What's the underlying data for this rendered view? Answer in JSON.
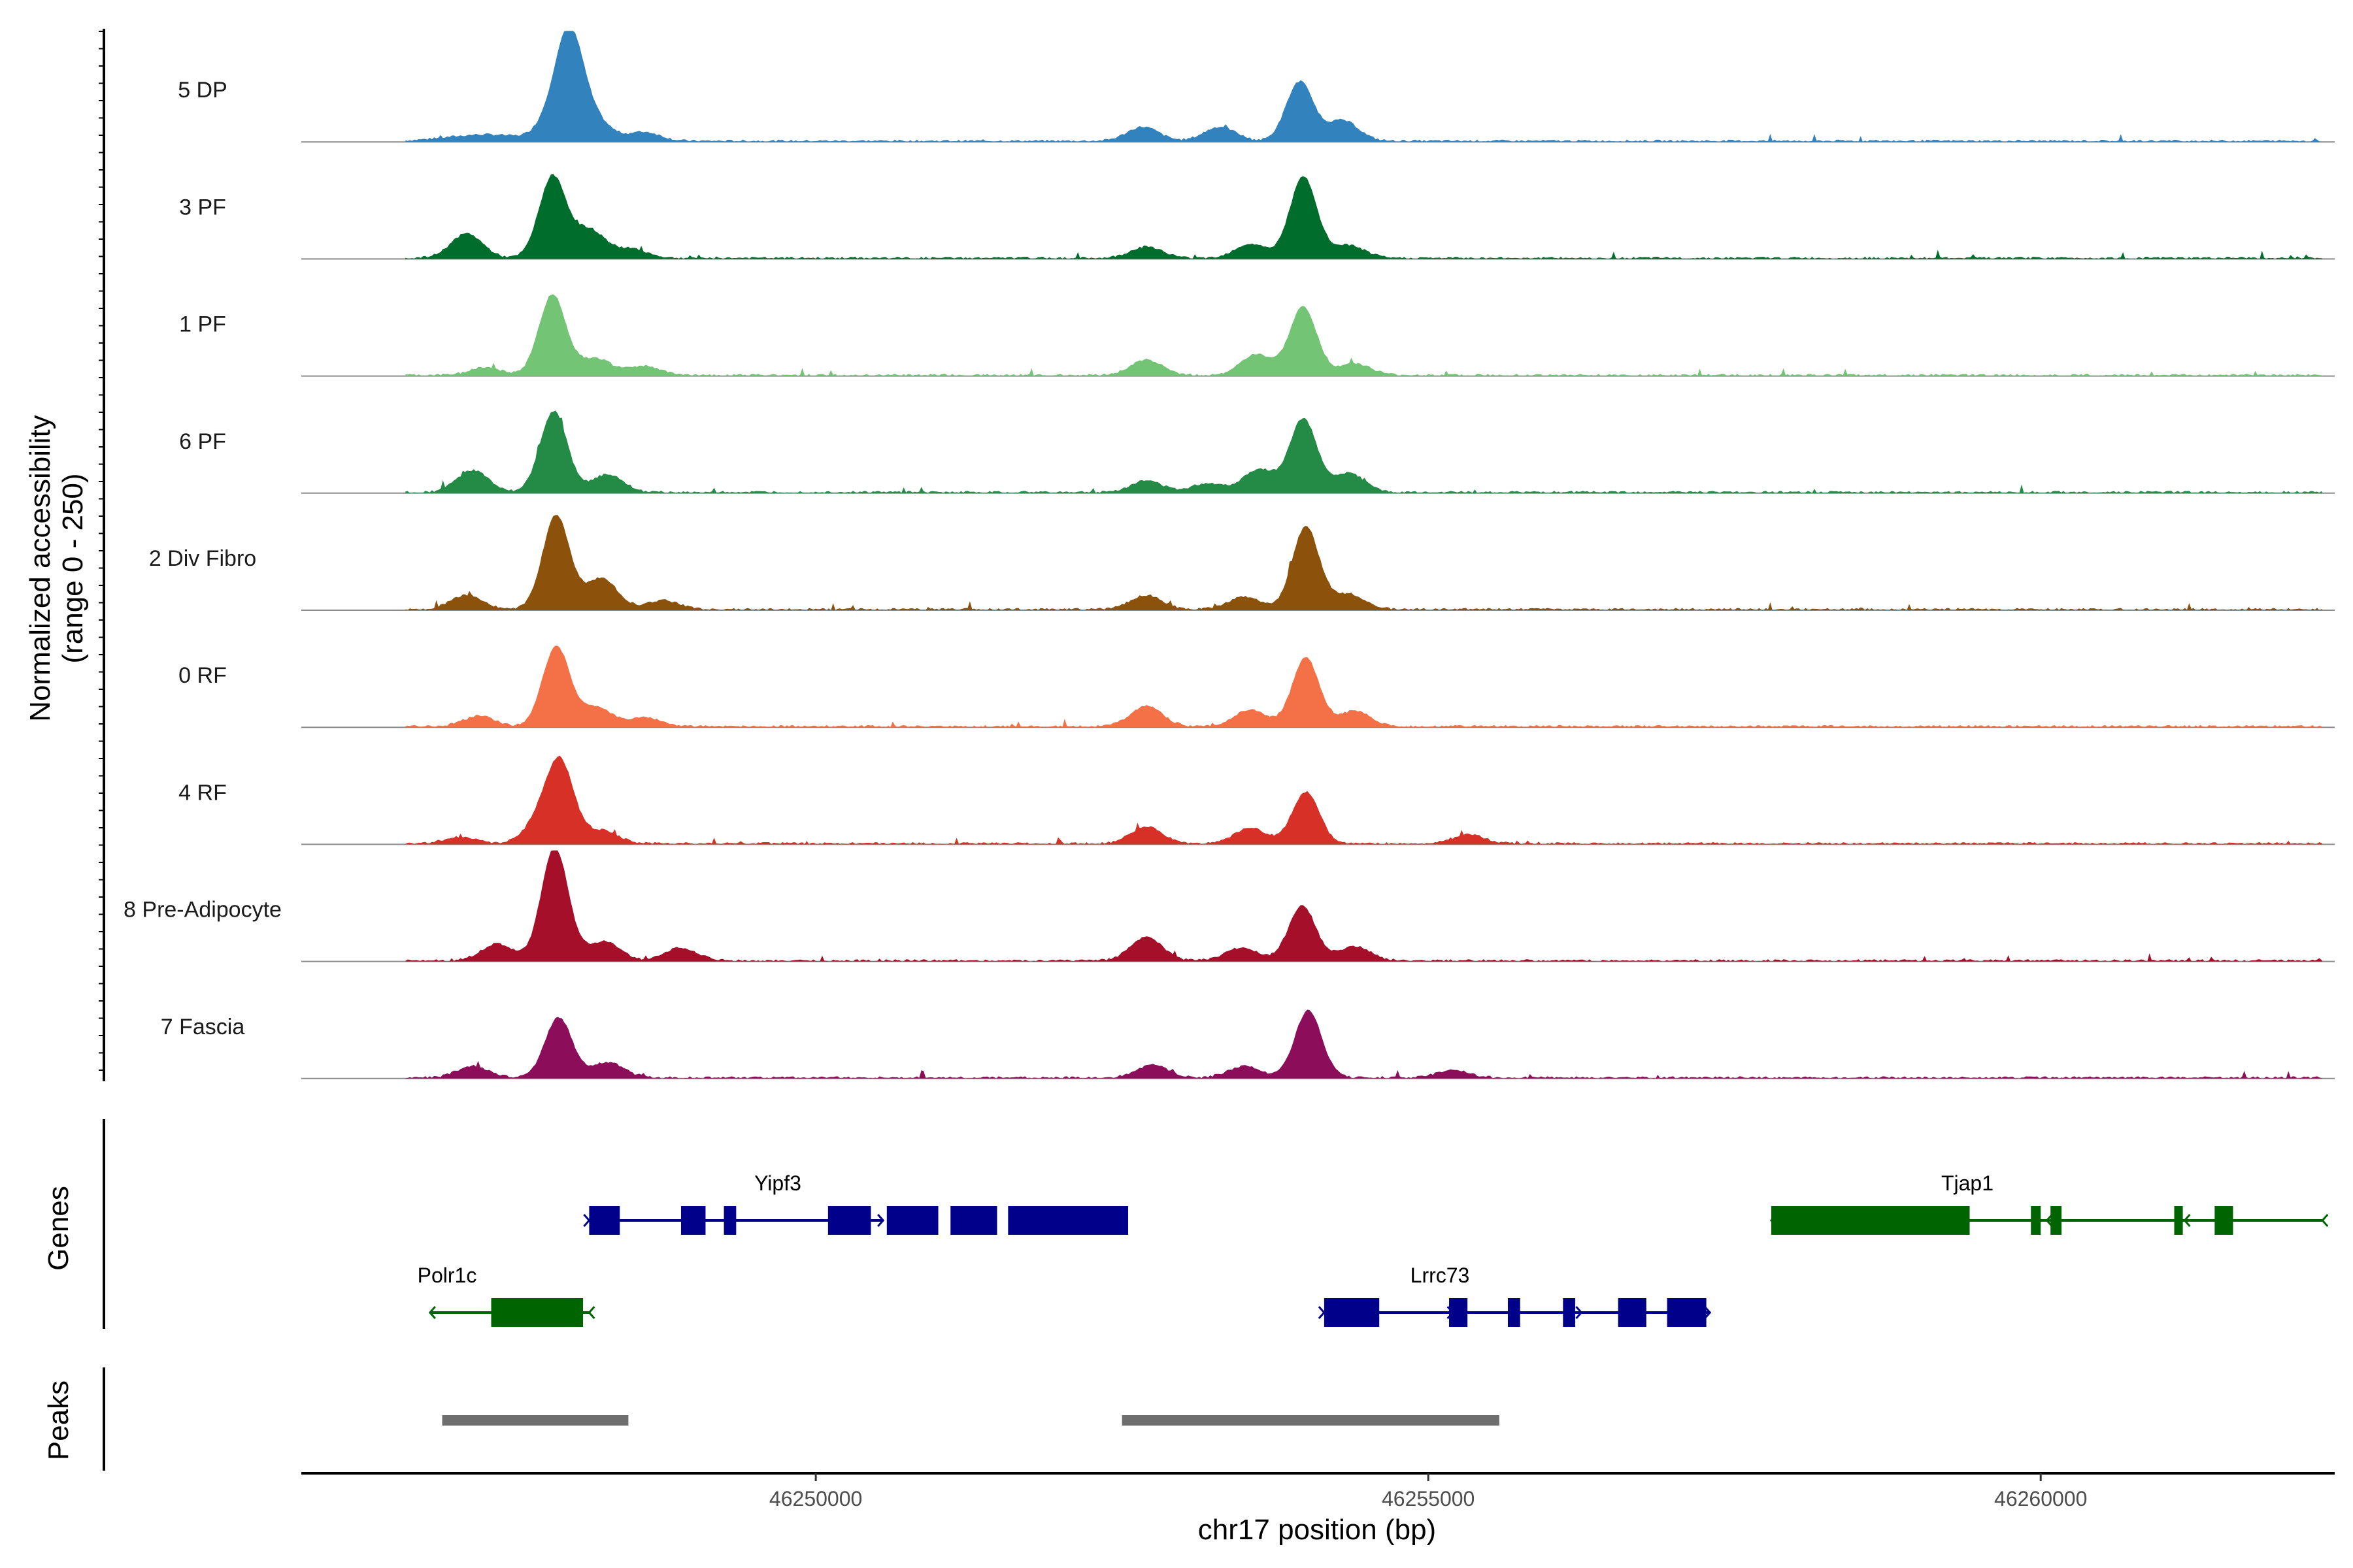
{
  "chart_data": {
    "type": "area",
    "title": "",
    "xlabel": "chr17 position (bp)",
    "ylabel": "Normalized accessibility\n(range 0 - 250)",
    "xlim": [
      46245800,
      46262400
    ],
    "ylim": [
      0,
      250
    ],
    "x_ticks": [
      46250000,
      46255000,
      46260000
    ],
    "x_tick_labels": [
      "46250000",
      "46255000",
      "46260000"
    ],
    "series": [
      {
        "name": "5 DP",
        "color": "#3182bd",
        "peaks": [
          [
            46247000,
            46247600,
            10
          ],
          [
            46247900,
            0,
            52
          ],
          [
            46248000,
            0,
            130
          ],
          [
            46248200,
            0,
            30
          ],
          [
            46248600,
            0,
            14
          ],
          [
            46252670,
            0,
            22
          ],
          [
            46253300,
            0,
            22
          ],
          [
            46253950,
            0,
            92
          ],
          [
            46254300,
            0,
            32
          ]
        ]
      },
      {
        "name": "3 PF",
        "color": "#006d2c",
        "peaks": [
          [
            46247150,
            0,
            38
          ],
          [
            46247850,
            0,
            126
          ],
          [
            46248150,
            0,
            44
          ],
          [
            46248500,
            0,
            14
          ],
          [
            46252700,
            0,
            18
          ],
          [
            46253550,
            0,
            22
          ],
          [
            46253980,
            0,
            126
          ],
          [
            46254350,
            0,
            20
          ]
        ]
      },
      {
        "name": "1 PF",
        "color": "#74c476",
        "peaks": [
          [
            46247300,
            0,
            12
          ],
          [
            46247850,
            0,
            125
          ],
          [
            46248200,
            0,
            26
          ],
          [
            46248600,
            0,
            14
          ],
          [
            46252700,
            0,
            24
          ],
          [
            46253600,
            0,
            32
          ],
          [
            46253980,
            0,
            106
          ],
          [
            46254400,
            0,
            18
          ]
        ]
      },
      {
        "name": "6 PF",
        "color": "#238b45",
        "peaks": [
          [
            46247200,
            0,
            34
          ],
          [
            46247860,
            0,
            126
          ],
          [
            46248300,
            0,
            28
          ],
          [
            46252700,
            0,
            18
          ],
          [
            46253200,
            0,
            14
          ],
          [
            46253620,
            0,
            36
          ],
          [
            46253980,
            0,
            114
          ],
          [
            46254350,
            0,
            30
          ]
        ]
      },
      {
        "name": "2 Div Fibro",
        "color": "#8c510a",
        "peaks": [
          [
            46247150,
            0,
            22
          ],
          [
            46247880,
            0,
            146
          ],
          [
            46248250,
            0,
            48
          ],
          [
            46248750,
            0,
            14
          ],
          [
            46252700,
            0,
            22
          ],
          [
            46253500,
            0,
            20
          ],
          [
            46254000,
            0,
            128
          ],
          [
            46254350,
            0,
            24
          ]
        ]
      },
      {
        "name": "0 RF",
        "color": "#f47046",
        "peaks": [
          [
            46247250,
            0,
            16
          ],
          [
            46247880,
            0,
            124
          ],
          [
            46248200,
            0,
            30
          ],
          [
            46248600,
            0,
            14
          ],
          [
            46252700,
            0,
            32
          ],
          [
            46253550,
            0,
            26
          ],
          [
            46254000,
            0,
            106
          ],
          [
            46254400,
            0,
            24
          ]
        ]
      },
      {
        "name": "4 RF",
        "color": "#d73027",
        "peaks": [
          [
            46247100,
            0,
            10
          ],
          [
            46247770,
            0,
            40
          ],
          [
            46247920,
            0,
            112
          ],
          [
            46248250,
            0,
            20
          ],
          [
            46252700,
            0,
            26
          ],
          [
            46253550,
            0,
            24
          ],
          [
            46254000,
            0,
            80
          ],
          [
            46255330,
            0,
            14
          ]
        ]
      },
      {
        "name": "8 Pre-Adipocyte",
        "color": "#a50f2a",
        "peaks": [
          [
            46247400,
            0,
            26
          ],
          [
            46247870,
            0,
            176
          ],
          [
            46248270,
            0,
            30
          ],
          [
            46248900,
            0,
            20
          ],
          [
            46252700,
            0,
            36
          ],
          [
            46253480,
            0,
            20
          ],
          [
            46253970,
            0,
            86
          ],
          [
            46254400,
            0,
            22
          ]
        ]
      },
      {
        "name": "7 Fascia",
        "color": "#8c0e5a",
        "peaks": [
          [
            46247200,
            0,
            18
          ],
          [
            46247900,
            0,
            94
          ],
          [
            46248300,
            0,
            24
          ],
          [
            46252750,
            0,
            20
          ],
          [
            46253500,
            0,
            18
          ],
          [
            46254020,
            0,
            104
          ],
          [
            46255200,
            0,
            12
          ]
        ]
      }
    ],
    "genes": [
      {
        "name": "Yipf3",
        "strand": "+",
        "color": "#00008b",
        "start": 46248150,
        "end": 46250550,
        "exons": [
          [
            46248150,
            46248400
          ],
          [
            46248900,
            46249100
          ],
          [
            46249250,
            46249350
          ],
          [
            46250100,
            46250450
          ],
          [
            46250580,
            46251000
          ],
          [
            46251100,
            46251480
          ],
          [
            46251570,
            46252550
          ]
        ]
      },
      {
        "name": "Polr1c",
        "strand": "-",
        "color": "#006400",
        "start": 46246850,
        "end": 46248150,
        "exons": [
          [
            46247350,
            46248100
          ]
        ]
      },
      {
        "name": "Lrrc73",
        "strand": "+",
        "color": "#00008b",
        "start": 46254150,
        "end": 46257300,
        "exons": [
          [
            46254150,
            46254600
          ],
          [
            46255170,
            46255320
          ],
          [
            46255650,
            46255750
          ],
          [
            46256100,
            46256200
          ],
          [
            46256550,
            46256780
          ],
          [
            46256950,
            46257270
          ]
        ]
      },
      {
        "name": "Tjap1",
        "strand": "-",
        "color": "#006400",
        "start": 46257800,
        "end": 46262300,
        "exons": [
          [
            46257800,
            46259420
          ],
          [
            46259920,
            46260000
          ],
          [
            46260080,
            46260170
          ],
          [
            46261090,
            46261160
          ],
          [
            46261420,
            46261570
          ]
        ]
      }
    ],
    "peaks_track": [
      [
        46246950,
        46248470
      ],
      [
        46252500,
        46255580
      ]
    ],
    "panel_titles": {
      "genes": "Genes",
      "peaks": "Peaks"
    }
  }
}
